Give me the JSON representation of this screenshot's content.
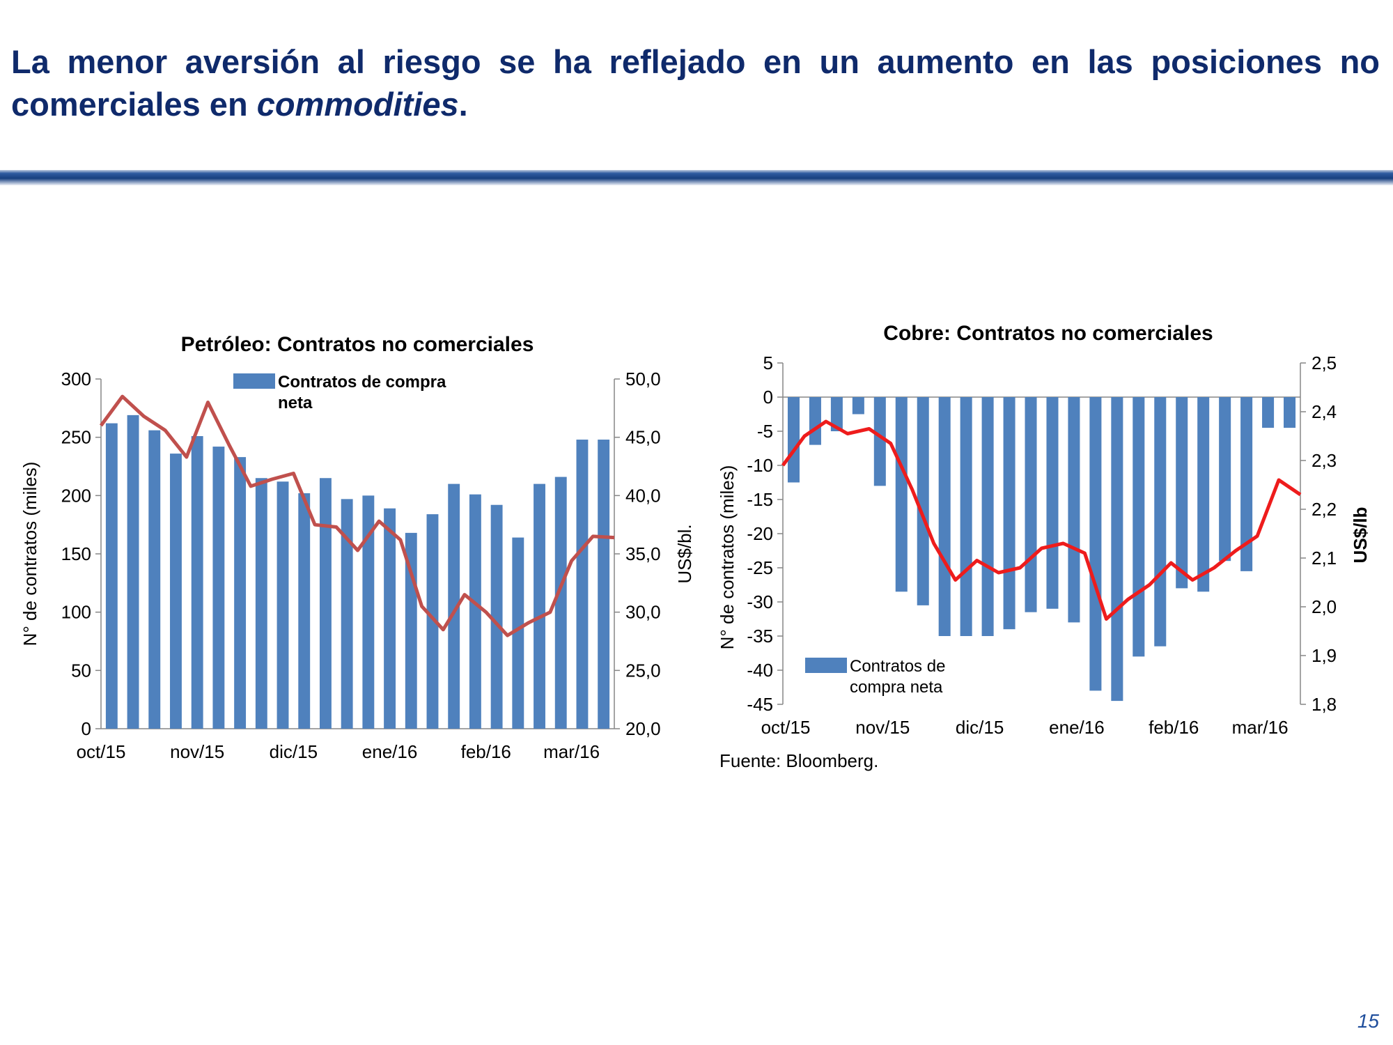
{
  "slide": {
    "title_part1": "La menor aversión al riesgo se ha reflejado en un aumento en las posiciones no comerciales en ",
    "title_emph": "commodities",
    "title_part2": ".",
    "page_number": "15"
  },
  "colors": {
    "bar": "#4f81bd",
    "petroleo_line": "#c0504d",
    "cobre_line": "#ee1c1c",
    "title": "#0f2a6b",
    "rule": "#17407f"
  },
  "chart_data": [
    {
      "id": "petroleo",
      "type": "bar",
      "title": "Petróleo: Contratos no comerciales",
      "ylabel": "N° de contratos (miles)",
      "y2label": "US$/bl.",
      "ylim": [
        0,
        300
      ],
      "y2lim": [
        20,
        50
      ],
      "yticks": [
        "0",
        "50",
        "100",
        "150",
        "200",
        "250",
        "300"
      ],
      "y2ticks": [
        "20,0",
        "25,0",
        "30,0",
        "35,0",
        "40,0",
        "45,0",
        "50,0"
      ],
      "xtick_labels": [
        "oct/15",
        "nov/15",
        "dic/15",
        "ene/16",
        "feb/16",
        "mar/16"
      ],
      "xtick_positions": [
        0,
        4.5,
        9,
        13.5,
        18,
        22
      ],
      "legend": {
        "label_line1": "Contratos de compra",
        "label_line2": "neta",
        "placement": "top-center"
      },
      "series": [
        {
          "name": "Contratos de compra neta",
          "type": "bar",
          "values": [
            262,
            269,
            256,
            236,
            251,
            242,
            233,
            215,
            212,
            202,
            215,
            197,
            200,
            189,
            168,
            184,
            210,
            201,
            192,
            164,
            210,
            216,
            248,
            248
          ]
        },
        {
          "type": "line",
          "axis": "right",
          "values": [
            46.0,
            48.5,
            46.8,
            45.6,
            43.3,
            48.0,
            44.3,
            40.8,
            41.4,
            41.9,
            37.5,
            37.3,
            35.3,
            37.8,
            36.2,
            30.5,
            28.5,
            31.5,
            30.0,
            28.0,
            29.1,
            30.0,
            34.4,
            36.5,
            36.4
          ]
        }
      ]
    },
    {
      "id": "cobre",
      "type": "bar",
      "title": "Cobre: Contratos no comerciales",
      "ylabel": "N° de contratos (miles)",
      "y2label": "US$/lb",
      "ylim": [
        -45,
        5
      ],
      "y2lim": [
        1.8,
        2.5
      ],
      "yticks": [
        "5",
        "0",
        "-5",
        "-10",
        "-15",
        "-20",
        "-25",
        "-30",
        "-35",
        "-40",
        "-45"
      ],
      "y2ticks": [
        "2,5",
        "2,4",
        "2,3",
        "2,2",
        "2,1",
        "2,0",
        "1,9",
        "1,8"
      ],
      "xtick_labels": [
        "oct/15",
        "nov/15",
        "dic/15",
        "ene/16",
        "feb/16",
        "mar/16"
      ],
      "xtick_positions": [
        0,
        4.5,
        9,
        13.5,
        18,
        22
      ],
      "legend": {
        "label_line1": "Contratos de",
        "label_line2": "compra neta",
        "placement": "bottom-left"
      },
      "source": "Fuente: Bloomberg.",
      "series": [
        {
          "name": "Contratos de compra neta",
          "type": "bar",
          "values": [
            -12.5,
            -7,
            -5,
            -2.5,
            -13,
            -28.5,
            -30.5,
            -35,
            -35,
            -35,
            -34,
            -31.5,
            -31,
            -33,
            -43,
            -44.5,
            -38,
            -36.5,
            -28,
            -28.5,
            -24,
            -25.5,
            -4.5,
            -4.5
          ]
        },
        {
          "type": "line",
          "axis": "right",
          "values": [
            2.29,
            2.35,
            2.38,
            2.355,
            2.365,
            2.335,
            2.24,
            2.13,
            2.055,
            2.095,
            2.07,
            2.08,
            2.12,
            2.13,
            2.11,
            1.975,
            2.015,
            2.045,
            2.09,
            2.055,
            2.08,
            2.115,
            2.145,
            2.26,
            2.23
          ]
        }
      ]
    }
  ]
}
